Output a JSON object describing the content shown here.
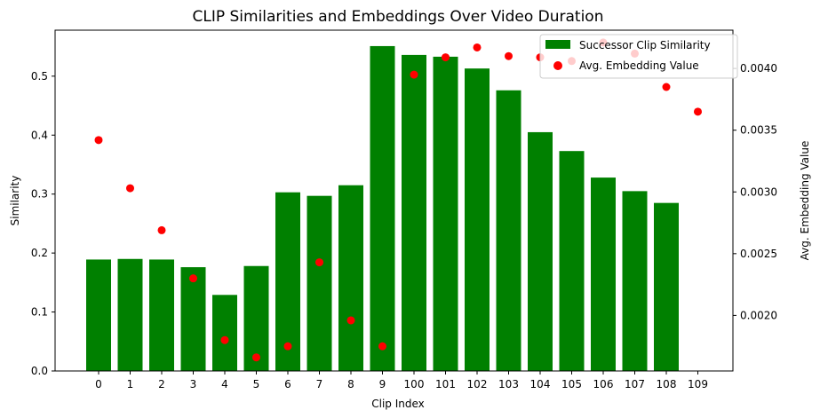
{
  "chart_data": {
    "type": "bar",
    "title": "CLIP Similarities and Embeddings Over Video Duration",
    "xlabel": "Clip Index",
    "ylabel": "Similarity",
    "y2label": "Avg. Embedding Value",
    "categories": [
      "0",
      "1",
      "2",
      "3",
      "4",
      "5",
      "6",
      "7",
      "8",
      "9",
      "100",
      "101",
      "102",
      "103",
      "104",
      "105",
      "106",
      "107",
      "108",
      "109"
    ],
    "ylim": [
      0,
      0.578
    ],
    "y2lim": [
      0.00155,
      0.00431
    ],
    "yticks": [
      "0.0",
      "0.1",
      "0.2",
      "0.3",
      "0.4",
      "0.5"
    ],
    "y2ticks": [
      "0.0020",
      "0.0025",
      "0.0030",
      "0.0035",
      "0.0040"
    ],
    "grid": false,
    "legend_position": "top-right",
    "series": [
      {
        "name": "Successor Clip Similarity",
        "kind": "bar",
        "axis": "left",
        "color": "#008000",
        "values": [
          0.189,
          0.19,
          0.189,
          0.176,
          0.129,
          0.178,
          0.303,
          0.297,
          0.315,
          0.551,
          0.536,
          0.533,
          0.513,
          0.476,
          0.405,
          0.373,
          0.328,
          0.305,
          0.285,
          null
        ]
      },
      {
        "name": "Avg. Embedding Value",
        "kind": "scatter",
        "axis": "right",
        "color": "#ff0000",
        "values": [
          0.00342,
          0.00303,
          0.00269,
          0.0023,
          0.0018,
          0.00166,
          0.00175,
          0.00243,
          0.00196,
          0.00175,
          0.00395,
          0.00409,
          0.00417,
          0.0041,
          0.00409,
          0.00406,
          0.00421,
          0.00412,
          0.00385,
          0.00365
        ]
      }
    ]
  }
}
